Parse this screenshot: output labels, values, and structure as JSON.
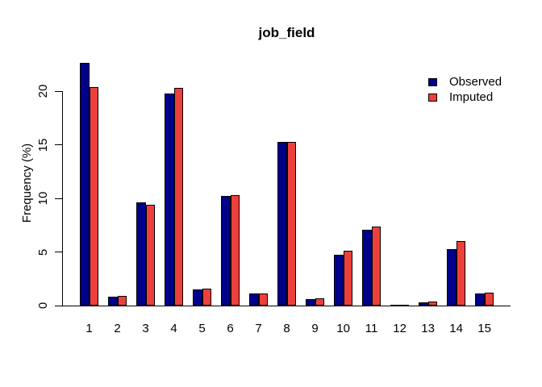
{
  "chart_data": {
    "type": "bar",
    "title": "job_field",
    "ylabel": "Frequency (%)",
    "xlabel": "",
    "categories": [
      "1",
      "2",
      "3",
      "4",
      "5",
      "6",
      "7",
      "8",
      "9",
      "10",
      "11",
      "12",
      "13",
      "14",
      "15"
    ],
    "series": [
      {
        "name": "Observed",
        "color": "#00008B",
        "values": [
          22.6,
          0.8,
          9.6,
          19.8,
          1.5,
          10.2,
          1.1,
          15.3,
          0.6,
          4.7,
          7.1,
          0.1,
          0.3,
          5.3,
          1.1
        ]
      },
      {
        "name": "Imputed",
        "color": "#ED403D",
        "values": [
          20.4,
          0.9,
          9.4,
          20.3,
          1.6,
          10.3,
          1.1,
          15.3,
          0.7,
          5.1,
          7.4,
          0.1,
          0.4,
          6.0,
          1.2
        ]
      }
    ],
    "yticks": [
      0,
      5,
      10,
      15,
      20
    ],
    "ylim": [
      0,
      23.3
    ],
    "grid": false,
    "legend_position": "top-right",
    "bar_border_color": "#000000"
  }
}
